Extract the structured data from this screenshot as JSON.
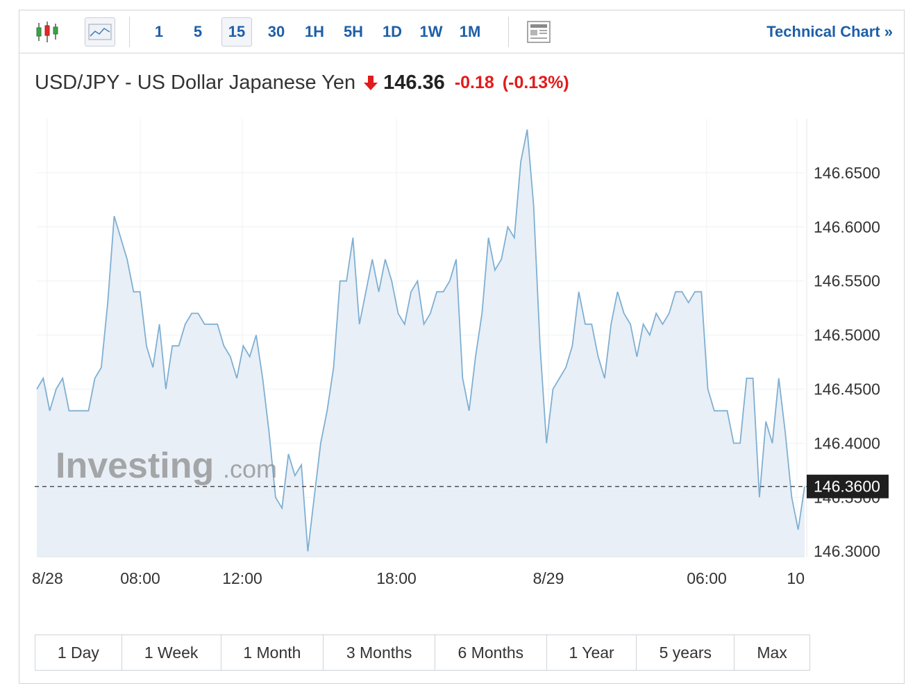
{
  "toolbar": {
    "candlestick_icon": "candlestick-icon",
    "line_icon": "line-chart-icon",
    "intervals": [
      "1",
      "5",
      "15",
      "30",
      "1H",
      "5H",
      "1D",
      "1W",
      "1M"
    ],
    "active_interval": "15",
    "layout_icon": "layout-icon",
    "technical_link": "Technical Chart »"
  },
  "header": {
    "name": "USD/JPY - US Dollar Japanese Yen",
    "direction_icon": "down-arrow-icon",
    "price": "146.36",
    "change": "-0.18",
    "change_pct": "(-0.13%)"
  },
  "watermark": {
    "brand": "Investing",
    "suffix": ".com"
  },
  "colors": {
    "accent": "#1d5fa8",
    "down": "#e21b1b",
    "line": "#7fafd2",
    "fill": "#e8eff7"
  },
  "chart_data": {
    "type": "area",
    "ylim": [
      146.295,
      146.7
    ],
    "y_ticks": [
      "146.3000",
      "146.3500",
      "146.4000",
      "146.4500",
      "146.5000",
      "146.5500",
      "146.6000",
      "146.6500"
    ],
    "x_ticks": [
      "8/28",
      "08:00",
      "12:00",
      "18:00",
      "8/29",
      "06:00",
      "10"
    ],
    "current_value": 146.36,
    "current_label": "146.3600",
    "values": [
      146.45,
      146.46,
      146.43,
      146.45,
      146.46,
      146.43,
      146.43,
      146.43,
      146.43,
      146.46,
      146.47,
      146.53,
      146.61,
      146.59,
      146.57,
      146.54,
      146.54,
      146.49,
      146.47,
      146.51,
      146.45,
      146.49,
      146.49,
      146.51,
      146.52,
      146.52,
      146.51,
      146.51,
      146.51,
      146.49,
      146.48,
      146.46,
      146.49,
      146.48,
      146.5,
      146.46,
      146.41,
      146.35,
      146.34,
      146.39,
      146.37,
      146.38,
      146.3,
      146.35,
      146.4,
      146.43,
      146.47,
      146.55,
      146.55,
      146.59,
      146.51,
      146.54,
      146.57,
      146.54,
      146.57,
      146.55,
      146.52,
      146.51,
      146.54,
      146.55,
      146.51,
      146.52,
      146.54,
      146.54,
      146.55,
      146.57,
      146.46,
      146.43,
      146.48,
      146.52,
      146.59,
      146.56,
      146.57,
      146.6,
      146.59,
      146.66,
      146.69,
      146.62,
      146.49,
      146.4,
      146.45,
      146.46,
      146.47,
      146.49,
      146.54,
      146.51,
      146.51,
      146.48,
      146.46,
      146.51,
      146.54,
      146.52,
      146.51,
      146.48,
      146.51,
      146.5,
      146.52,
      146.51,
      146.52,
      146.54,
      146.54,
      146.53,
      146.54,
      146.54,
      146.45,
      146.43,
      146.43,
      146.43,
      146.4,
      146.4,
      146.46,
      146.46,
      146.35,
      146.42,
      146.4,
      146.46,
      146.41,
      146.35,
      146.32,
      146.36
    ]
  },
  "range_buttons": [
    "1 Day",
    "1 Week",
    "1 Month",
    "3 Months",
    "6 Months",
    "1 Year",
    "5 years",
    "Max"
  ]
}
